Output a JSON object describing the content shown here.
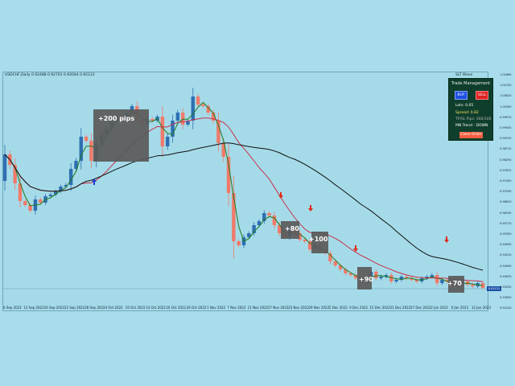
{
  "chart": {
    "symbol_info": "USDCHF,Daily  0.92488 0.92761 0.92044 0.92122",
    "ea_label": "SLT Wave"
  },
  "panel": {
    "title": "Trade Management",
    "buy_label": "BUY",
    "sell_label": "SELL",
    "lots": "Lots: 0.05",
    "spread": "Spread: 0.82",
    "tpsl": "TP/SL Pips: 300/100",
    "trend": "MN Trend - DOWN",
    "close_label": "Close Order"
  },
  "annotations": {
    "pips_200": "+200 pips",
    "pips_80": "+80",
    "pips_100": "+100",
    "pips_90": "+90",
    "pips_70": "+70"
  },
  "price_axis": {
    "labels": [
      "1.01660",
      "1.01230",
      "1.00810",
      "1.00390",
      "0.99970",
      "0.99550",
      "0.99130",
      "0.98710",
      "0.98290",
      "0.97870",
      "0.97450",
      "0.97030",
      "0.96610",
      "0.96190",
      "0.95770",
      "0.95350",
      "0.94930",
      "0.94510",
      "0.94090",
      "0.93670",
      "0.93250",
      "0.92830",
      "0.92410"
    ],
    "current": "0.92122"
  },
  "date_axis": {
    "labels": [
      "6 Sep 2022",
      "12 Sep 2022",
      "16 Sep 2022",
      "22 Sep 2022",
      "28 Sep 2022",
      "4 Oct 2022",
      "10 Oct 2022",
      "14 Oct 2022",
      "20 Oct 2022",
      "26 Oct 2022",
      "1 Nov 2022",
      "7 Nov 2022",
      "11 Nov 2022",
      "17 Nov 2022",
      "23 Nov 2022",
      "29 Nov 2022",
      "5 Dec 2022",
      "9 Dec 2022",
      "15 Dec 2022",
      "21 Dec 2022",
      "27 Dec 2022",
      "2 Jan 2023",
      "6 Jan 2023",
      "12 Jan 2023"
    ]
  },
  "colors": {
    "bull": "#2f6fb2",
    "bear": "#f07a6a",
    "ma_fast": "#1a7a1a",
    "ma_mid": "#c8324a",
    "ma_slow": "#111111",
    "buy_arrow": "#1c3fd0",
    "sell_arrow": "#e02a1a"
  }
}
